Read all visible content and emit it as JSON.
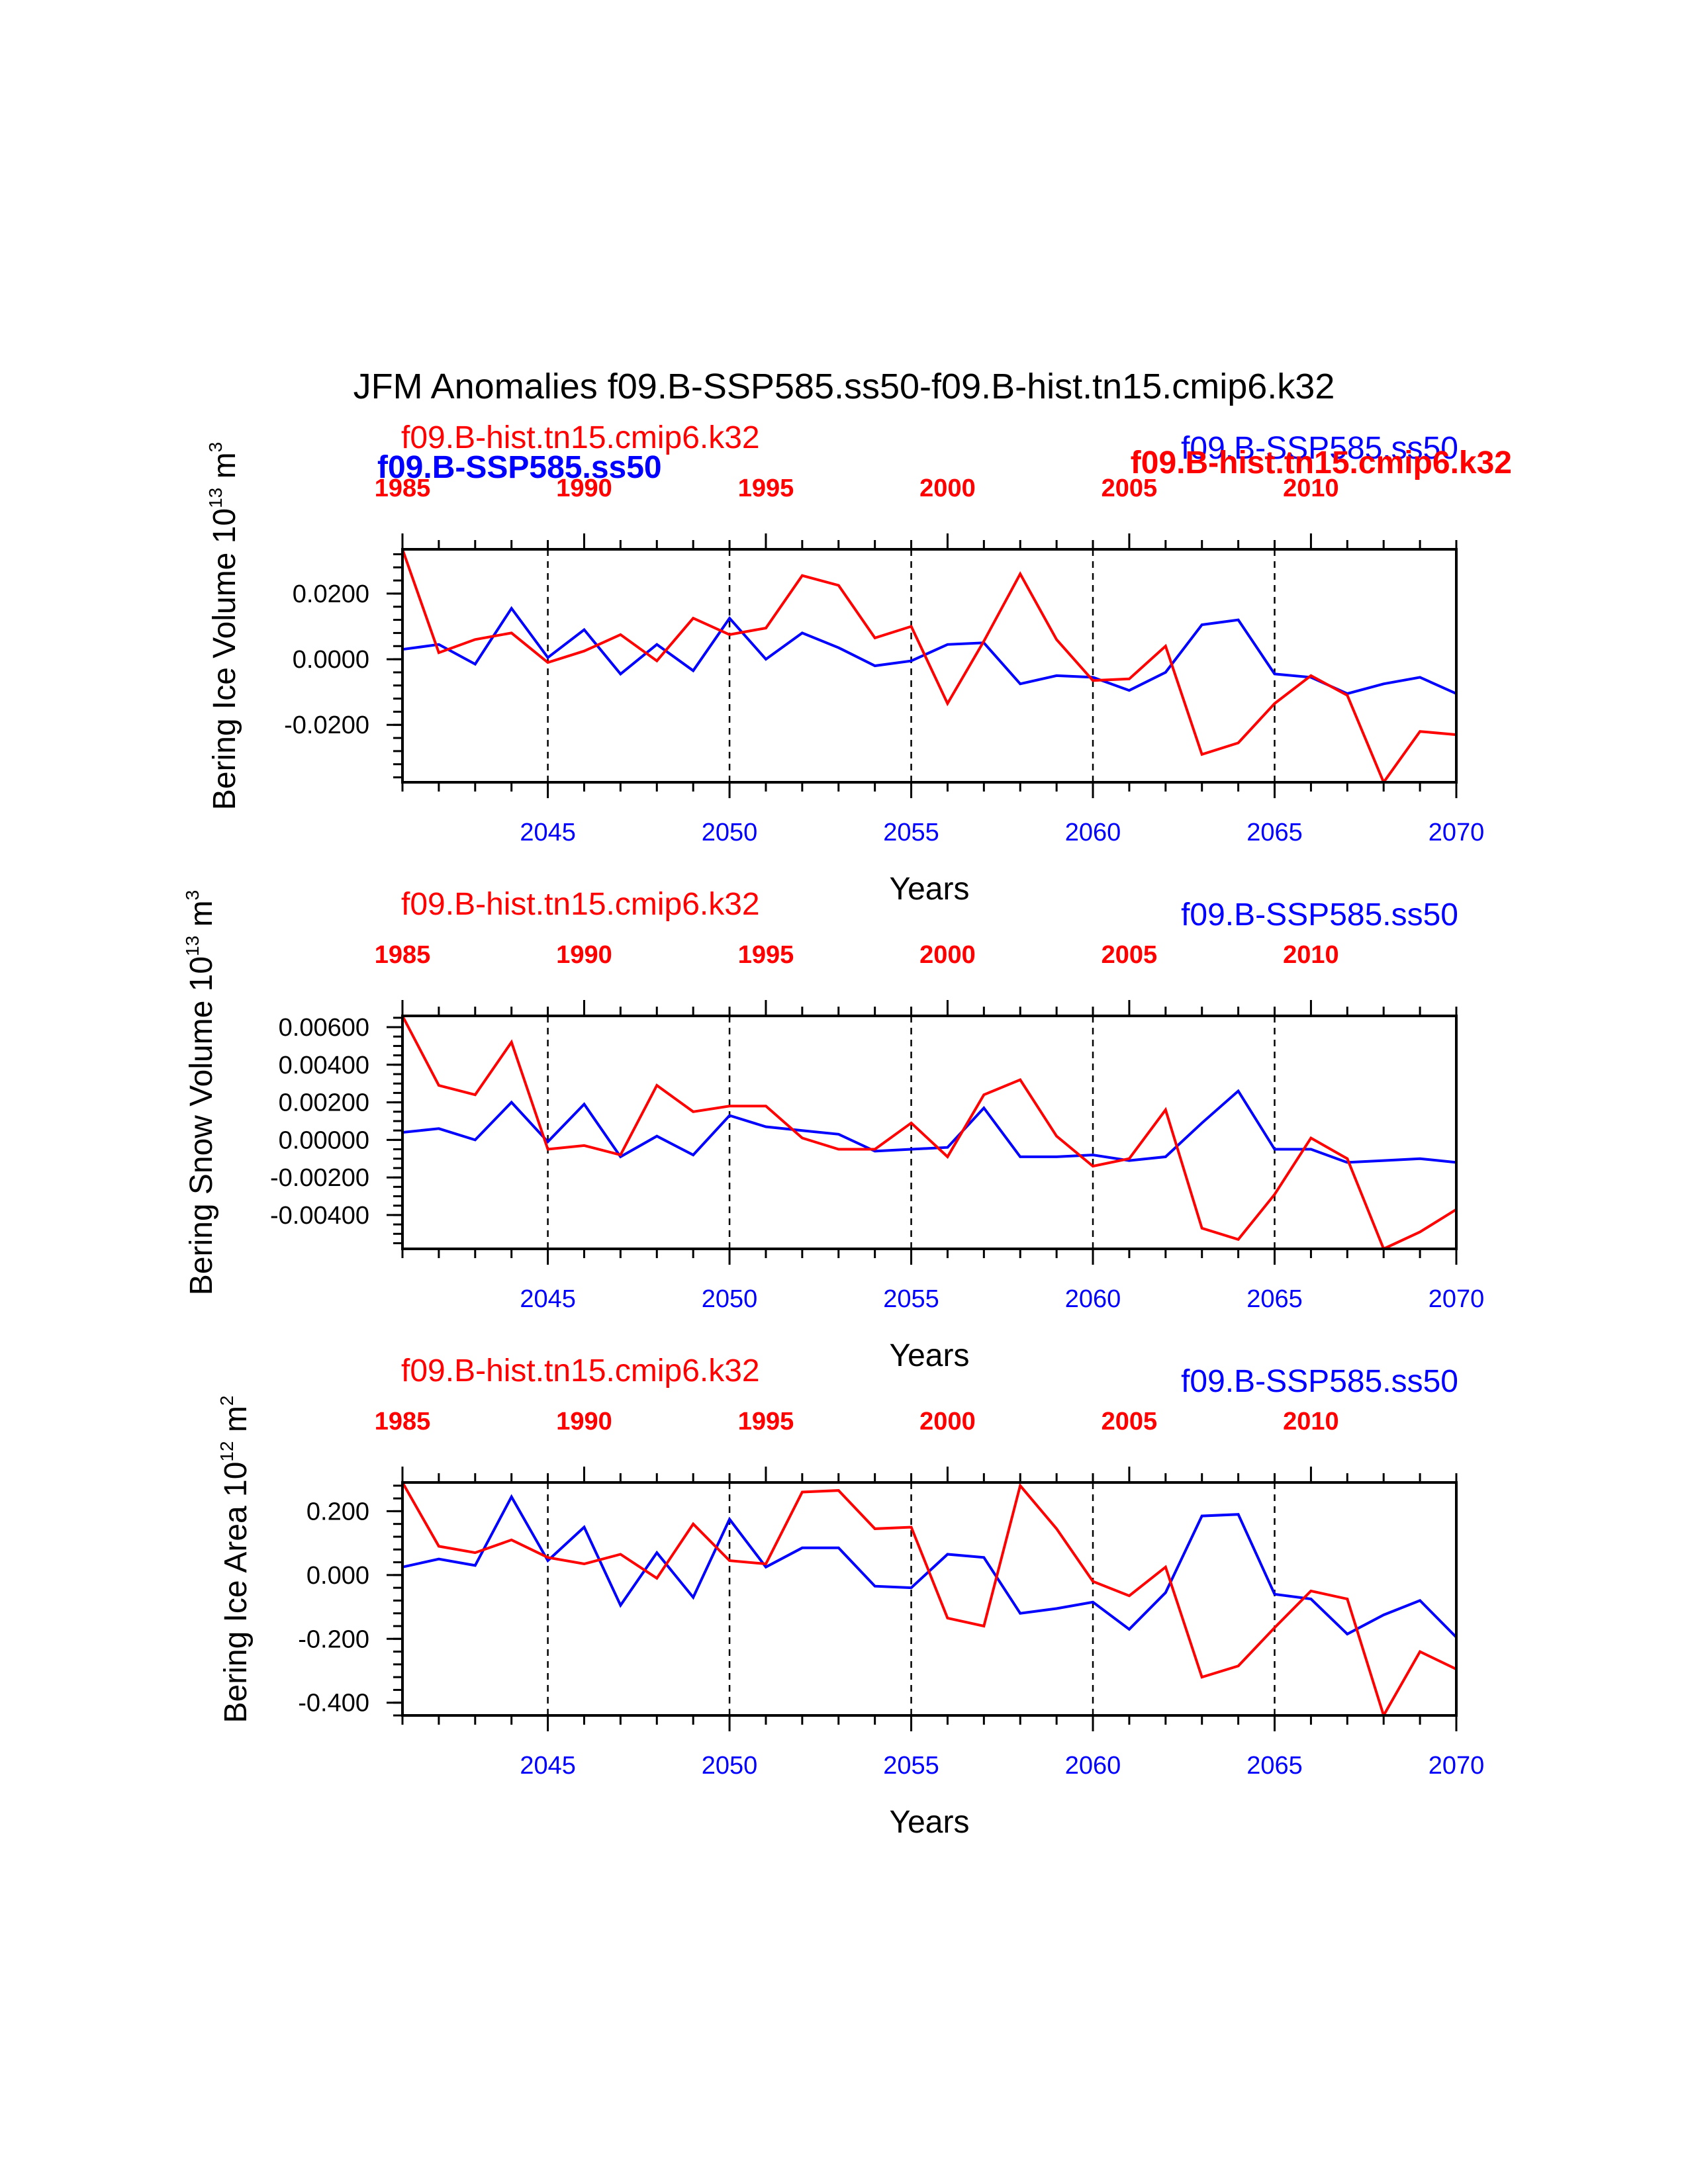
{
  "title": "JFM Anomalies f09.B-SSP585.ss50-f09.B-hist.tn15.cmip6.k32",
  "colors": {
    "ssp": "#0000ff",
    "hist": "#ff0000",
    "axis": "#000000"
  },
  "overlay_labels": {
    "left": "f09.B-SSP585.ss50",
    "right": "f09.B-hist.tn15.cmip6.k32"
  },
  "chart_data": [
    {
      "type": "line",
      "ylabel": "Bering Ice Volume 10",
      "ylabel_exp": "13",
      "ylabel_unit": " m",
      "ylabel_unit_exp": "3",
      "xlabel": "Years",
      "ylim": [
        -0.0375,
        0.0335
      ],
      "yticks": [
        -0.02,
        0.0,
        0.02
      ],
      "ytick_labels": [
        "-0.0200",
        "0.0000",
        "0.0200"
      ],
      "ytick_minor_step": 0.004,
      "xlim": [
        2041,
        2070
      ],
      "x_top_offset": -56,
      "bottom_ticks": [
        "2045",
        "2050",
        "2055",
        "2060",
        "2065",
        "2070"
      ],
      "top_ticks": [
        "1985",
        "1990",
        "1995",
        "2000",
        "2005",
        "2010"
      ],
      "x": [
        2041,
        2042,
        2043,
        2044,
        2045,
        2046,
        2047,
        2048,
        2049,
        2050,
        2051,
        2052,
        2053,
        2054,
        2055,
        2056,
        2057,
        2058,
        2059,
        2060,
        2061,
        2062,
        2063,
        2064,
        2065,
        2066,
        2067,
        2068,
        2069,
        2070
      ],
      "series": [
        {
          "name": "f09.B-SSP585.ss50",
          "color": "#0000ff",
          "values": [
            0.003,
            0.0045,
            -0.0015,
            0.0155,
            0.0005,
            0.009,
            -0.0045,
            0.0045,
            -0.0035,
            0.0125,
            0.0,
            0.008,
            0.0035,
            -0.002,
            -0.0005,
            0.0045,
            0.005,
            -0.0075,
            -0.005,
            -0.0055,
            -0.0095,
            -0.004,
            0.0105,
            0.012,
            -0.0045,
            -0.0055,
            -0.0105,
            -0.0075,
            -0.0055,
            -0.0105
          ]
        },
        {
          "name": "f09.B-hist.tn15.cmip6.k32",
          "color": "#ff0000",
          "values": [
            0.0335,
            0.002,
            0.006,
            0.008,
            -0.001,
            0.0025,
            0.0075,
            -0.0005,
            0.0125,
            0.0075,
            0.0095,
            0.0255,
            0.0225,
            0.0065,
            0.01,
            -0.0135,
            0.0055,
            0.026,
            0.006,
            -0.0065,
            -0.006,
            0.004,
            -0.029,
            -0.0255,
            -0.0135,
            -0.005,
            -0.011,
            -0.0375,
            -0.022,
            -0.023
          ]
        }
      ],
      "legend_top": {
        "left": "f09.B-hist.tn15.cmip6.k32",
        "right": "f09.B-SSP585.ss50"
      }
    },
    {
      "type": "line",
      "ylabel": "Bering Snow Volume 10",
      "ylabel_exp": "13",
      "ylabel_unit": " m",
      "ylabel_unit_exp": "3",
      "xlabel": "Years",
      "ylim": [
        -0.0058,
        0.0066
      ],
      "yticks": [
        -0.004,
        -0.002,
        0.0,
        0.002,
        0.004,
        0.006
      ],
      "ytick_labels": [
        "-0.00400",
        "-0.00200",
        "0.00000",
        "0.00200",
        "0.00400",
        "0.00600"
      ],
      "ytick_minor_step": 0.0005,
      "xlim": [
        2041,
        2070
      ],
      "x_top_offset": -56,
      "bottom_ticks": [
        "2045",
        "2050",
        "2055",
        "2060",
        "2065",
        "2070"
      ],
      "top_ticks": [
        "1985",
        "1990",
        "1995",
        "2000",
        "2005",
        "2010"
      ],
      "x": [
        2041,
        2042,
        2043,
        2044,
        2045,
        2046,
        2047,
        2048,
        2049,
        2050,
        2051,
        2052,
        2053,
        2054,
        2055,
        2056,
        2057,
        2058,
        2059,
        2060,
        2061,
        2062,
        2063,
        2064,
        2065,
        2066,
        2067,
        2068,
        2069,
        2070
      ],
      "series": [
        {
          "name": "f09.B-SSP585.ss50",
          "color": "#0000ff",
          "values": [
            0.0004,
            0.0006,
            0.0,
            0.002,
            -0.0001,
            0.0019,
            -0.0009,
            0.0002,
            -0.0008,
            0.0013,
            0.0007,
            0.0005,
            0.0003,
            -0.0006,
            -0.0005,
            -0.0004,
            0.0017,
            -0.0009,
            -0.0009,
            -0.0008,
            -0.0011,
            -0.0009,
            0.0009,
            0.0026,
            -0.0005,
            -0.0005,
            -0.0012,
            -0.0011,
            -0.001,
            -0.0012
          ]
        },
        {
          "name": "f09.B-hist.tn15.cmip6.k32",
          "color": "#ff0000",
          "values": [
            0.0066,
            0.0029,
            0.0024,
            0.0052,
            -0.0005,
            -0.0003,
            -0.0008,
            0.0029,
            0.0015,
            0.0018,
            0.0018,
            0.0001,
            -0.0005,
            -0.0005,
            0.0009,
            -0.0009,
            0.0024,
            0.0032,
            0.0002,
            -0.0014,
            -0.001,
            0.0016,
            -0.0047,
            -0.0053,
            -0.0029,
            0.0001,
            -0.001,
            -0.0058,
            -0.0049,
            -0.0037
          ]
        }
      ],
      "legend_top": {
        "left": "f09.B-hist.tn15.cmip6.k32",
        "right": "f09.B-SSP585.ss50"
      }
    },
    {
      "type": "line",
      "ylabel": "Bering Ice Area 10",
      "ylabel_exp": "12",
      "ylabel_unit": " m",
      "ylabel_unit_exp": "2",
      "xlabel": "Years",
      "ylim": [
        -0.44,
        0.29
      ],
      "yticks": [
        -0.4,
        -0.2,
        0.0,
        0.2
      ],
      "ytick_labels": [
        "-0.400",
        "-0.200",
        "0.000",
        "0.200"
      ],
      "ytick_minor_step": 0.04,
      "xlim": [
        2041,
        2070
      ],
      "x_top_offset": -56,
      "bottom_ticks": [
        "2045",
        "2050",
        "2055",
        "2060",
        "2065",
        "2070"
      ],
      "top_ticks": [
        "1985",
        "1990",
        "1995",
        "2000",
        "2005",
        "2010"
      ],
      "x": [
        2041,
        2042,
        2043,
        2044,
        2045,
        2046,
        2047,
        2048,
        2049,
        2050,
        2051,
        2052,
        2053,
        2054,
        2055,
        2056,
        2057,
        2058,
        2059,
        2060,
        2061,
        2062,
        2063,
        2064,
        2065,
        2066,
        2067,
        2068,
        2069,
        2070
      ],
      "series": [
        {
          "name": "f09.B-SSP585.ss50",
          "color": "#0000ff",
          "values": [
            0.025,
            0.05,
            0.03,
            0.245,
            0.045,
            0.15,
            -0.095,
            0.07,
            -0.07,
            0.175,
            0.025,
            0.085,
            0.085,
            -0.035,
            -0.04,
            0.065,
            0.055,
            -0.12,
            -0.105,
            -0.085,
            -0.17,
            -0.055,
            0.185,
            0.19,
            -0.06,
            -0.075,
            -0.185,
            -0.125,
            -0.08,
            -0.195
          ]
        },
        {
          "name": "f09.B-hist.tn15.cmip6.k32",
          "color": "#ff0000",
          "values": [
            0.29,
            0.09,
            0.07,
            0.11,
            0.055,
            0.035,
            0.065,
            -0.01,
            0.16,
            0.045,
            0.035,
            0.26,
            0.265,
            0.145,
            0.15,
            -0.135,
            -0.16,
            0.28,
            0.145,
            -0.02,
            -0.065,
            0.025,
            -0.32,
            -0.285,
            -0.165,
            -0.05,
            -0.075,
            -0.44,
            -0.24,
            -0.295
          ]
        }
      ],
      "legend_top": {
        "left": "f09.B-hist.tn15.cmip6.k32",
        "right": "f09.B-SSP585.ss50"
      }
    }
  ]
}
